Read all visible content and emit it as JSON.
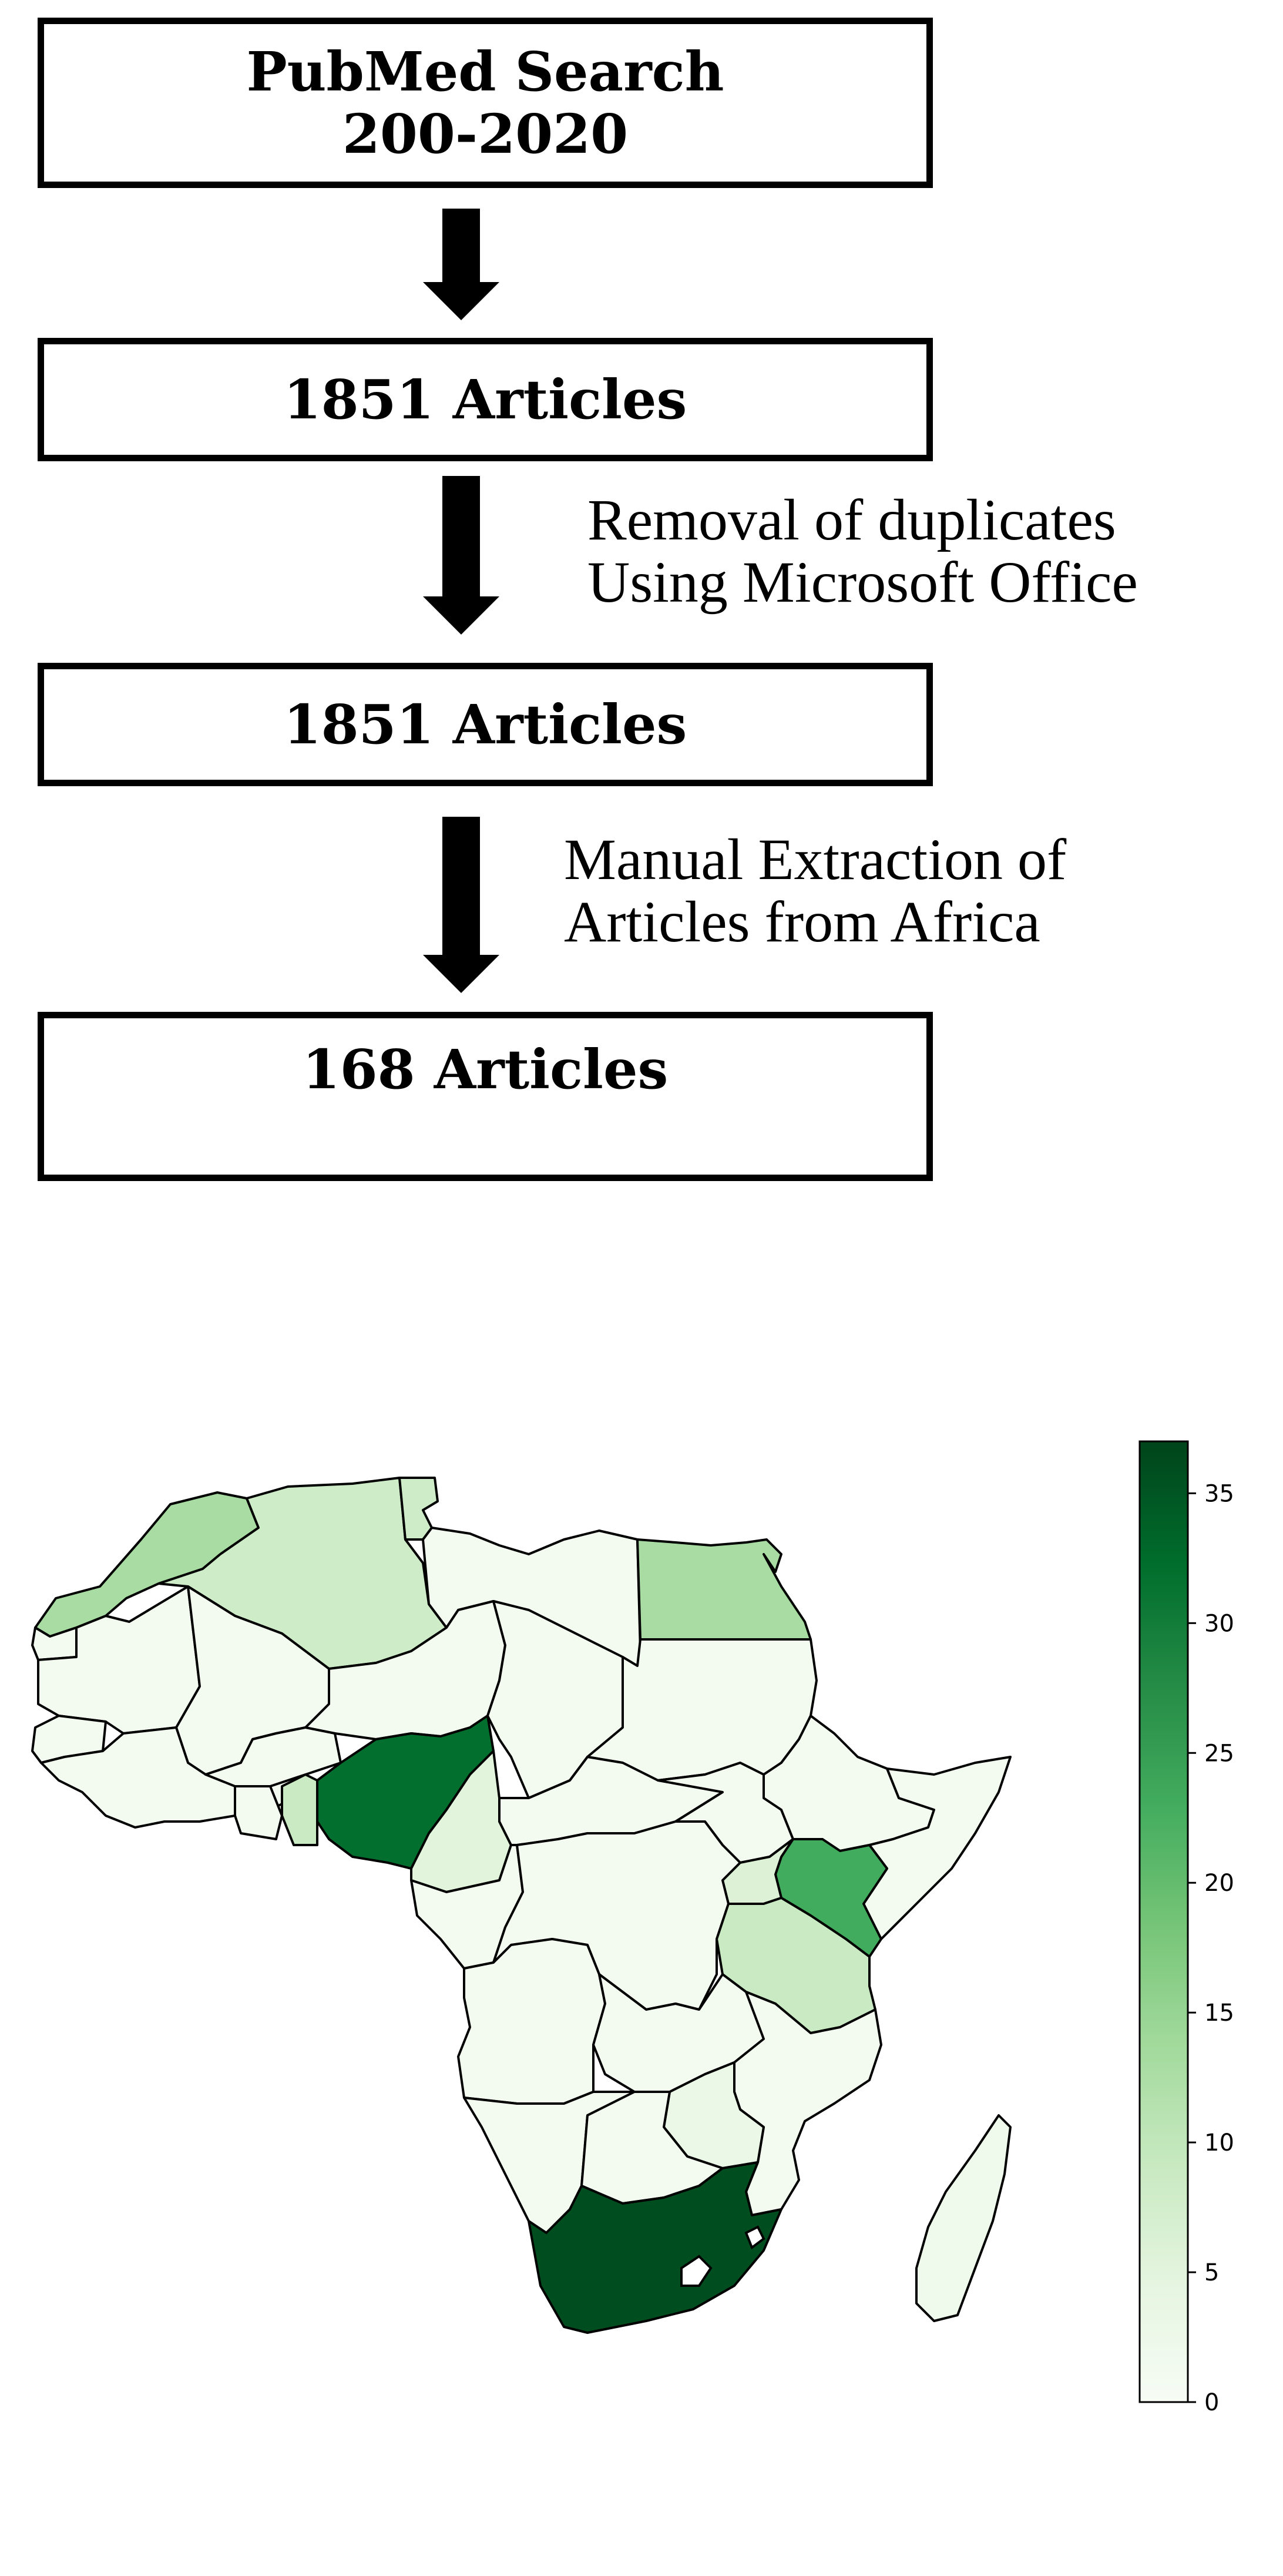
{
  "flowchart": {
    "boxes": [
      {
        "text": "PubMed Search\n200-2020"
      },
      {
        "text": "1851 Articles"
      },
      {
        "text": "1851 Articles"
      },
      {
        "text": "168 Articles"
      }
    ],
    "step_notes": [
      {
        "text": "Removal of duplicates\nUsing Microsoft Office"
      },
      {
        "text": "Manual Extraction of\nArticles from Africa"
      }
    ]
  },
  "map": {
    "colormap": [
      "#f7fcf5",
      "#e5f5e0",
      "#c7e9c0",
      "#a1d99b",
      "#74c476",
      "#41ab5d",
      "#238b45",
      "#006d2c",
      "#00441b"
    ],
    "colorbar": {
      "ticks": [
        {
          "label": "0",
          "value": 0
        },
        {
          "label": "5",
          "value": 5
        },
        {
          "label": "10",
          "value": 10
        },
        {
          "label": "15",
          "value": 15
        },
        {
          "label": "20",
          "value": 20
        },
        {
          "label": "25",
          "value": 25
        },
        {
          "label": "30",
          "value": 30
        },
        {
          "label": "35",
          "value": 35
        }
      ],
      "max": 37
    },
    "countries": [
      {
        "name": "morocco",
        "value": 13
      },
      {
        "name": "algeria",
        "value": 8
      },
      {
        "name": "tunisia",
        "value": 8
      },
      {
        "name": "libya",
        "value": 1
      },
      {
        "name": "egypt",
        "value": 13
      },
      {
        "name": "western-sahara",
        "value": 1
      },
      {
        "name": "mauritania",
        "value": 1
      },
      {
        "name": "mali",
        "value": 1
      },
      {
        "name": "niger",
        "value": 1
      },
      {
        "name": "chad",
        "value": 1
      },
      {
        "name": "sudan",
        "value": 1
      },
      {
        "name": "senegal",
        "value": 1
      },
      {
        "name": "west-coast",
        "value": 1
      },
      {
        "name": "burkina-faso",
        "value": 1
      },
      {
        "name": "ghana",
        "value": 1
      },
      {
        "name": "togo-benin",
        "value": 9
      },
      {
        "name": "nigeria",
        "value": 32
      },
      {
        "name": "cameroon",
        "value": 5
      },
      {
        "name": "car",
        "value": 1
      },
      {
        "name": "south-sudan",
        "value": 1
      },
      {
        "name": "ethiopia",
        "value": 1
      },
      {
        "name": "somalia",
        "value": 1
      },
      {
        "name": "kenya",
        "value": 23
      },
      {
        "name": "uganda",
        "value": 6
      },
      {
        "name": "gabon-congo",
        "value": 1
      },
      {
        "name": "drc",
        "value": 1
      },
      {
        "name": "tanzania",
        "value": 9
      },
      {
        "name": "angola",
        "value": 1
      },
      {
        "name": "zambia",
        "value": 1
      },
      {
        "name": "malawi-mozambique",
        "value": 1
      },
      {
        "name": "zimbabwe",
        "value": 3
      },
      {
        "name": "namibia",
        "value": 1
      },
      {
        "name": "botswana",
        "value": 1
      },
      {
        "name": "south-africa",
        "value": 36
      },
      {
        "name": "madagascar",
        "value": 2
      }
    ]
  }
}
